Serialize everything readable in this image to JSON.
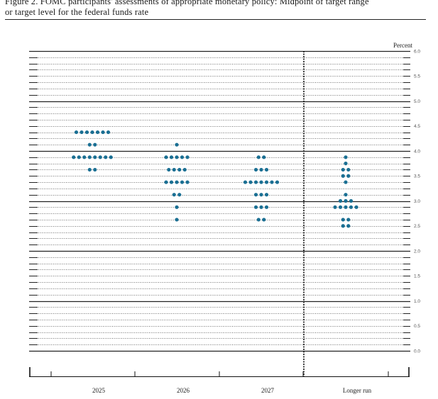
{
  "caption": {
    "line1": "Figure 2.  FOMC participants' assessments of appropriate monetary policy:  Midpoint of target range",
    "line2": "or target level for the federal funds rate"
  },
  "chart_data": {
    "type": "scatter",
    "title": "Figure 2. FOMC participants' assessments of appropriate monetary policy: Midpoint of target range or target level for the federal funds rate",
    "ylabel": "Percent",
    "ylim": [
      0,
      6
    ],
    "yticks": [
      "0.0",
      "0.5",
      "1.0",
      "1.5",
      "2.0",
      "2.5",
      "3.0",
      "3.5",
      "4.0",
      "4.5",
      "5.0",
      "5.5",
      "6.0"
    ],
    "categories": [
      "2025",
      "2026",
      "2027",
      "Longer run"
    ],
    "dot_color": "#1a6f93",
    "points": [
      {
        "x": "2025",
        "y": 4.375,
        "count": 7
      },
      {
        "x": "2025",
        "y": 4.125,
        "count": 2
      },
      {
        "x": "2025",
        "y": 3.875,
        "count": 8
      },
      {
        "x": "2025",
        "y": 3.625,
        "count": 2
      },
      {
        "x": "2026",
        "y": 4.125,
        "count": 1
      },
      {
        "x": "2026",
        "y": 3.875,
        "count": 5
      },
      {
        "x": "2026",
        "y": 3.625,
        "count": 4
      },
      {
        "x": "2026",
        "y": 3.375,
        "count": 5
      },
      {
        "x": "2026",
        "y": 3.125,
        "count": 2
      },
      {
        "x": "2026",
        "y": 2.875,
        "count": 1
      },
      {
        "x": "2026",
        "y": 2.625,
        "count": 1
      },
      {
        "x": "2027",
        "y": 3.875,
        "count": 2
      },
      {
        "x": "2027",
        "y": 3.625,
        "count": 3
      },
      {
        "x": "2027",
        "y": 3.375,
        "count": 7
      },
      {
        "x": "2027",
        "y": 3.125,
        "count": 3
      },
      {
        "x": "2027",
        "y": 2.875,
        "count": 3
      },
      {
        "x": "2027",
        "y": 2.625,
        "count": 2
      },
      {
        "x": "Longer run",
        "y": 3.875,
        "count": 1
      },
      {
        "x": "Longer run",
        "y": 3.75,
        "count": 1
      },
      {
        "x": "Longer run",
        "y": 3.625,
        "count": 2
      },
      {
        "x": "Longer run",
        "y": 3.5,
        "count": 2
      },
      {
        "x": "Longer run",
        "y": 3.375,
        "count": 1
      },
      {
        "x": "Longer run",
        "y": 3.125,
        "count": 1
      },
      {
        "x": "Longer run",
        "y": 3.0,
        "count": 3
      },
      {
        "x": "Longer run",
        "y": 2.875,
        "count": 5
      },
      {
        "x": "Longer run",
        "y": 2.625,
        "count": 2
      },
      {
        "x": "Longer run",
        "y": 2.5,
        "count": 2
      }
    ]
  }
}
